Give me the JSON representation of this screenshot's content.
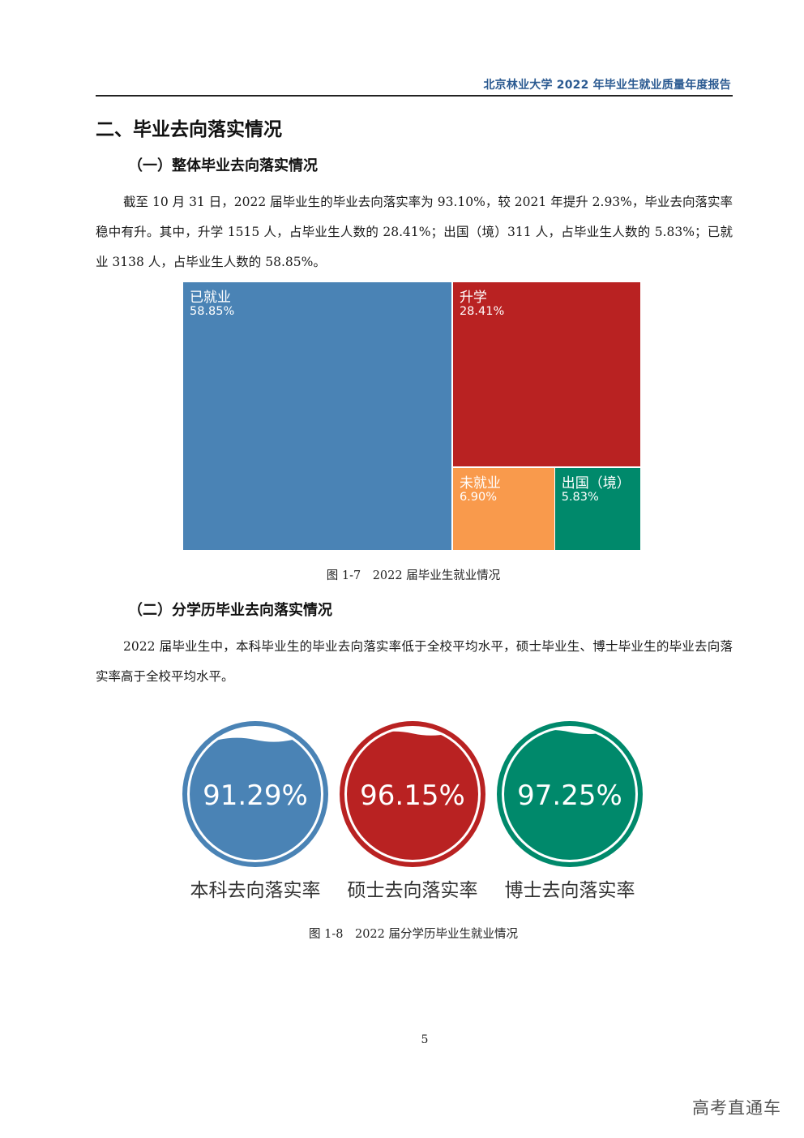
{
  "header": {
    "title": "北京林业大学 2022 年毕业生就业质量年度报告"
  },
  "section": {
    "title": "二、毕业去向落实情况"
  },
  "subsection1": {
    "title": "（一）整体毕业去向落实情况",
    "paragraph": "截至 10 月 31 日，2022 届毕业生的毕业去向落实率为 93.10%，较 2021 年提升 2.93%，毕业去向落实率稳中有升。其中，升学 1515 人，占毕业生人数的 28.41%；出国（境）311 人，占毕业生人数的 5.83%；已就业 3138 人，占毕业生人数的 58.85%。"
  },
  "figure1": {
    "caption": "图 1-7　2022 届毕业生就业情况"
  },
  "subsection2": {
    "title": "（二）分学历毕业去向落实情况",
    "paragraph": "2022 届毕业生中，本科毕业生的毕业去向落实率低于全校平均水平，硕士毕业生、博士毕业生的毕业去向落实率高于全校平均水平。"
  },
  "figure2": {
    "caption": "图 1-8　2022 届分学历毕业生就业情况"
  },
  "chart_data": [
    {
      "type": "treemap",
      "title": "",
      "items": [
        {
          "name": "已就业",
          "value": 58.85,
          "label": "58.85%",
          "color": "#4a83b5"
        },
        {
          "name": "升学",
          "value": 28.41,
          "label": "28.41%",
          "color": "#b92222"
        },
        {
          "name": "未就业",
          "value": 6.9,
          "label": "6.90%",
          "color": "#f99a4c"
        },
        {
          "name": "出国（境）",
          "value": 5.83,
          "label": "5.83%",
          "color": "#00896b"
        }
      ]
    },
    {
      "type": "gauge",
      "title": "",
      "items": [
        {
          "name": "本科去向落实率",
          "value": 91.29,
          "label": "91.29%",
          "color": "#4a83b5"
        },
        {
          "name": "硕士去向落实率",
          "value": 96.15,
          "label": "96.15%",
          "color": "#b92222"
        },
        {
          "name": "博士去向落实率",
          "value": 97.25,
          "label": "97.25%",
          "color": "#00896b"
        }
      ]
    }
  ],
  "footer": {
    "page_number": "5",
    "watermark": "高考直通车"
  }
}
